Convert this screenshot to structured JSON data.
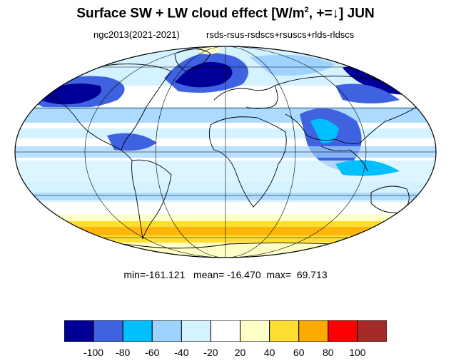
{
  "title": {
    "text_before_sup": "Surface SW + LW cloud effect [W/m",
    "sup": "2",
    "text_after_sup": ", +=↓]  JUN"
  },
  "subtitle": {
    "left": "ngc2013(2021-2021)",
    "right": "rsds-rsus-rsdscs+rsuscs+rlds-rldscs"
  },
  "stats": {
    "min_label": "min=",
    "min": "-161.121",
    "mean_label": "mean=",
    "mean": "-16.470",
    "max_label": "max=",
    "max": "69.713"
  },
  "colorbar": {
    "colors": [
      "#000099",
      "#3f63e0",
      "#00bfff",
      "#9fd3ff",
      "#d4f2ff",
      "#ffffff",
      "#ffffc8",
      "#ffde33",
      "#ffaa00",
      "#ff0000",
      "#a52a2a"
    ],
    "tick_labels": [
      "-100",
      "-80",
      "-60",
      "-40",
      "-20",
      "20",
      "40",
      "60",
      "80",
      "100"
    ]
  },
  "map": {
    "projection": "Mollweide",
    "ocean_color": "#ffffff"
  }
}
